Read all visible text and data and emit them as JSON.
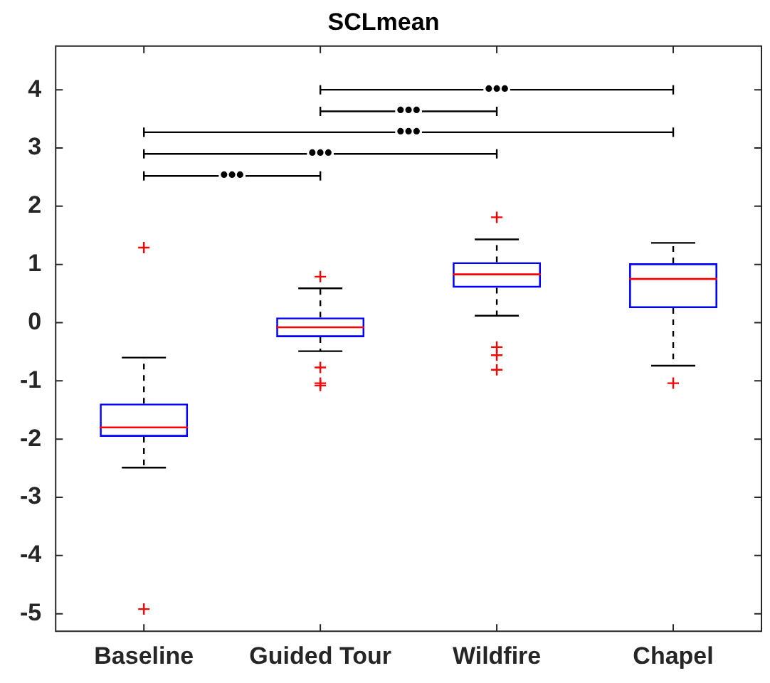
{
  "chart_data": {
    "type": "box",
    "title": "SCLmean",
    "categories": [
      "Baseline",
      "Guided Tour",
      "Wildfire",
      "Chapel"
    ],
    "ylim": [
      -5.3,
      4.75
    ],
    "yticks": [
      -5,
      -4,
      -3,
      -2,
      -1,
      0,
      1,
      2,
      3,
      4
    ],
    "grid": false,
    "legend": false,
    "series": [
      {
        "type": "box",
        "color": "#0000ff",
        "boxes": [
          {
            "low": -2.49,
            "q1": -1.96,
            "median": -1.8,
            "q3": -1.39,
            "high": -0.6,
            "outliers": [
              1.29,
              -4.92
            ]
          },
          {
            "low": -0.49,
            "q1": -0.25,
            "median": -0.08,
            "q3": 0.09,
            "high": 0.59,
            "outliers": [
              0.79,
              -0.77,
              -1.04,
              -1.08
            ]
          },
          {
            "low": 0.12,
            "q1": 0.6,
            "median": 0.83,
            "q3": 1.04,
            "high": 1.43,
            "outliers": [
              1.81,
              -0.42,
              -0.56,
              -0.81
            ]
          },
          {
            "low": -0.74,
            "q1": 0.25,
            "median": 0.75,
            "q3": 1.02,
            "high": 1.37,
            "outliers": [
              -1.04
            ]
          }
        ]
      },
      {
        "type": "line",
        "color": "#000000",
        "x": [
          "Baseline",
          "Guided Tour"
        ],
        "values": [
          2.52,
          2.52
        ],
        "errors": [
          0.08,
          0.08
        ]
      },
      {
        "type": "line",
        "color": "#000000",
        "x": [
          "Baseline",
          "Wildfire"
        ],
        "values": [
          2.9,
          2.9
        ],
        "errors": [
          0.08,
          0.08
        ]
      },
      {
        "type": "line",
        "color": "#000000",
        "x": [
          "Baseline",
          "Chapel"
        ],
        "values": [
          3.27,
          3.27
        ],
        "errors": [
          0.08,
          0.08
        ]
      },
      {
        "type": "line",
        "color": "#000000",
        "x": [
          "Guided Tour",
          "Wildfire"
        ],
        "values": [
          3.63,
          3.63
        ],
        "errors": [
          0.08,
          0.08
        ]
      },
      {
        "type": "line",
        "color": "#000000",
        "x": [
          "Guided Tour",
          "Chapel"
        ],
        "values": [
          4.0,
          4.0
        ],
        "errors": [
          0.08,
          0.08
        ]
      }
    ],
    "annotations": [
      "•••",
      "•••",
      "•••",
      "•••",
      "•••"
    ]
  }
}
